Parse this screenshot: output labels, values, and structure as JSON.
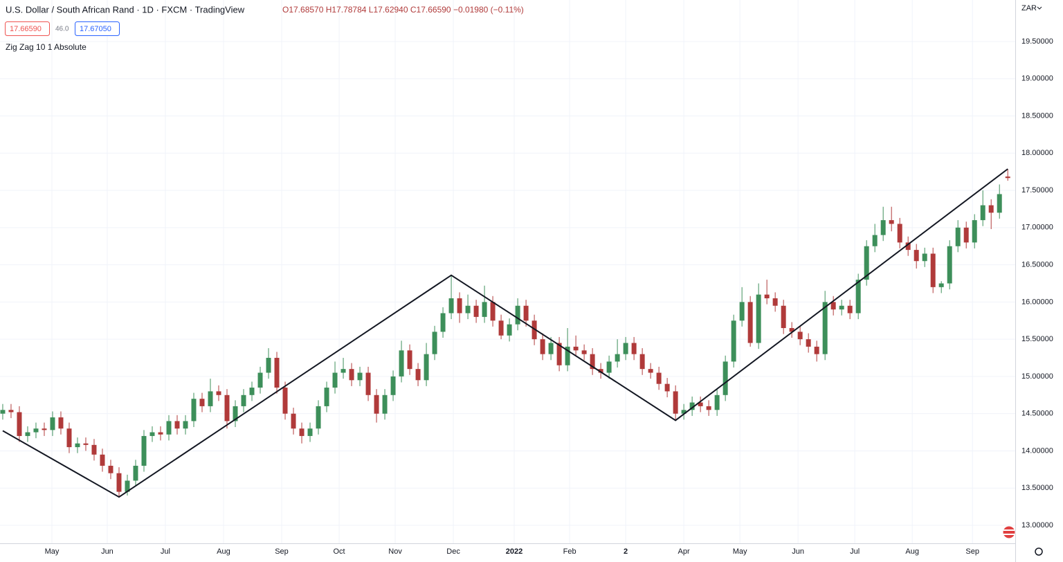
{
  "chart_data": {
    "type": "candlestick",
    "title": "U.S. Dollar / South African Rand · 1D · FXCM · TradingView",
    "ohlc_text": [
      "O17.68570",
      "H17.78784",
      "L17.62940",
      "C17.66590",
      "−0.01980 (−0.11%)"
    ],
    "bid": "17.66590",
    "spread": "46.0",
    "ask": "17.67050",
    "indicator": "Zig Zag 10 1 Absolute",
    "currency": "ZAR",
    "up_color": "#3d8f5a",
    "down_color": "#b03a3a",
    "candles": [
      [
        14.5,
        14.63,
        14.42,
        14.55
      ],
      [
        14.55,
        14.63,
        14.44,
        14.52
      ],
      [
        14.52,
        14.6,
        14.12,
        14.2
      ],
      [
        14.2,
        14.33,
        14.12,
        14.25
      ],
      [
        14.25,
        14.38,
        14.17,
        14.3
      ],
      [
        14.3,
        14.38,
        14.2,
        14.28
      ],
      [
        14.28,
        14.53,
        14.2,
        14.45
      ],
      [
        14.45,
        14.53,
        14.22,
        14.3
      ],
      [
        14.3,
        14.38,
        13.97,
        14.05
      ],
      [
        14.05,
        14.18,
        13.97,
        14.1
      ],
      [
        14.1,
        14.18,
        14.0,
        14.08
      ],
      [
        14.08,
        14.16,
        13.87,
        13.95
      ],
      [
        13.95,
        14.03,
        13.72,
        13.8
      ],
      [
        13.8,
        13.88,
        13.62,
        13.7
      ],
      [
        13.7,
        13.78,
        13.38,
        13.45
      ],
      [
        13.45,
        13.68,
        13.4,
        13.6
      ],
      [
        13.6,
        13.88,
        13.52,
        13.8
      ],
      [
        13.8,
        14.28,
        13.72,
        14.2
      ],
      [
        14.2,
        14.33,
        14.12,
        14.25
      ],
      [
        14.25,
        14.33,
        14.14,
        14.22
      ],
      [
        14.22,
        14.48,
        14.14,
        14.4
      ],
      [
        14.4,
        14.48,
        14.22,
        14.3
      ],
      [
        14.3,
        14.48,
        14.22,
        14.4
      ],
      [
        14.4,
        14.78,
        14.32,
        14.7
      ],
      [
        14.7,
        14.78,
        14.52,
        14.6
      ],
      [
        14.6,
        14.97,
        14.52,
        14.8
      ],
      [
        14.8,
        14.88,
        14.67,
        14.75
      ],
      [
        14.75,
        14.83,
        14.3,
        14.4
      ],
      [
        14.4,
        14.68,
        14.32,
        14.6
      ],
      [
        14.6,
        14.83,
        14.52,
        14.75
      ],
      [
        14.75,
        14.93,
        14.67,
        14.85
      ],
      [
        14.85,
        15.13,
        14.77,
        15.05
      ],
      [
        15.05,
        15.38,
        14.97,
        15.25
      ],
      [
        15.25,
        15.33,
        14.77,
        14.85
      ],
      [
        14.85,
        14.93,
        14.42,
        14.5
      ],
      [
        14.5,
        14.58,
        14.22,
        14.3
      ],
      [
        14.3,
        14.38,
        14.1,
        14.2
      ],
      [
        14.2,
        14.38,
        14.12,
        14.3
      ],
      [
        14.3,
        14.68,
        14.22,
        14.6
      ],
      [
        14.6,
        14.93,
        14.52,
        14.85
      ],
      [
        14.85,
        15.2,
        14.77,
        15.05
      ],
      [
        15.05,
        15.25,
        14.97,
        15.1
      ],
      [
        15.1,
        15.18,
        14.87,
        14.95
      ],
      [
        14.95,
        15.13,
        14.87,
        15.05
      ],
      [
        15.05,
        15.13,
        14.67,
        14.75
      ],
      [
        14.75,
        14.83,
        14.38,
        14.5
      ],
      [
        14.5,
        14.83,
        14.42,
        14.75
      ],
      [
        14.75,
        15.08,
        14.67,
        15.0
      ],
      [
        15.0,
        15.48,
        14.92,
        15.35
      ],
      [
        15.35,
        15.43,
        15.02,
        15.1
      ],
      [
        15.1,
        15.18,
        14.87,
        14.95
      ],
      [
        14.95,
        15.45,
        14.87,
        15.3
      ],
      [
        15.3,
        15.68,
        15.22,
        15.6
      ],
      [
        15.6,
        15.93,
        15.52,
        15.85
      ],
      [
        15.85,
        16.36,
        15.77,
        16.05
      ],
      [
        16.05,
        16.13,
        15.72,
        15.85
      ],
      [
        15.85,
        16.1,
        15.77,
        15.95
      ],
      [
        15.95,
        16.03,
        15.72,
        15.8
      ],
      [
        15.8,
        16.22,
        15.72,
        16.0
      ],
      [
        16.0,
        16.08,
        15.67,
        15.75
      ],
      [
        15.75,
        15.83,
        15.5,
        15.55
      ],
      [
        15.55,
        15.78,
        15.47,
        15.7
      ],
      [
        15.7,
        16.05,
        15.62,
        15.95
      ],
      [
        15.95,
        16.03,
        15.67,
        15.75
      ],
      [
        15.75,
        15.83,
        15.42,
        15.5
      ],
      [
        15.5,
        15.58,
        15.22,
        15.3
      ],
      [
        15.3,
        15.53,
        15.22,
        15.45
      ],
      [
        15.45,
        15.53,
        15.07,
        15.15
      ],
      [
        15.15,
        15.65,
        15.07,
        15.4
      ],
      [
        15.4,
        15.55,
        15.27,
        15.35
      ],
      [
        15.35,
        15.43,
        15.22,
        15.3
      ],
      [
        15.3,
        15.38,
        15.02,
        15.1
      ],
      [
        15.1,
        15.18,
        14.97,
        15.05
      ],
      [
        15.05,
        15.28,
        14.97,
        15.2
      ],
      [
        15.2,
        15.5,
        15.12,
        15.3
      ],
      [
        15.3,
        15.53,
        15.22,
        15.45
      ],
      [
        15.45,
        15.53,
        15.22,
        15.3
      ],
      [
        15.3,
        15.38,
        15.02,
        15.1
      ],
      [
        15.1,
        15.18,
        14.97,
        15.05
      ],
      [
        15.05,
        15.13,
        14.82,
        14.9
      ],
      [
        14.9,
        14.98,
        14.72,
        14.8
      ],
      [
        14.8,
        14.88,
        14.41,
        14.5
      ],
      [
        14.5,
        14.63,
        14.42,
        14.55
      ],
      [
        14.55,
        14.73,
        14.47,
        14.65
      ],
      [
        14.65,
        14.73,
        14.52,
        14.6
      ],
      [
        14.6,
        14.68,
        14.47,
        14.55
      ],
      [
        14.55,
        14.83,
        14.47,
        14.75
      ],
      [
        14.75,
        15.28,
        14.67,
        15.2
      ],
      [
        15.2,
        15.83,
        15.12,
        15.75
      ],
      [
        15.75,
        16.2,
        15.67,
        16.0
      ],
      [
        16.0,
        16.08,
        15.4,
        15.45
      ],
      [
        15.45,
        16.25,
        15.37,
        16.1
      ],
      [
        16.1,
        16.3,
        15.97,
        16.05
      ],
      [
        16.05,
        16.13,
        15.87,
        15.95
      ],
      [
        15.95,
        16.03,
        15.57,
        15.65
      ],
      [
        15.65,
        15.73,
        15.52,
        15.6
      ],
      [
        15.6,
        15.68,
        15.42,
        15.5
      ],
      [
        15.5,
        15.58,
        15.32,
        15.4
      ],
      [
        15.4,
        15.48,
        15.2,
        15.3
      ],
      [
        15.3,
        16.15,
        15.22,
        16.0
      ],
      [
        16.0,
        16.08,
        15.82,
        15.9
      ],
      [
        15.9,
        16.03,
        15.82,
        15.95
      ],
      [
        15.95,
        16.03,
        15.77,
        15.85
      ],
      [
        15.85,
        16.38,
        15.77,
        16.3
      ],
      [
        16.3,
        16.83,
        16.22,
        16.75
      ],
      [
        16.75,
        17.05,
        16.67,
        16.9
      ],
      [
        16.9,
        17.28,
        16.82,
        17.1
      ],
      [
        17.1,
        17.28,
        16.95,
        17.05
      ],
      [
        17.05,
        17.13,
        16.72,
        16.8
      ],
      [
        16.8,
        16.88,
        16.62,
        16.7
      ],
      [
        16.7,
        16.78,
        16.45,
        16.55
      ],
      [
        16.55,
        16.73,
        16.47,
        16.65
      ],
      [
        16.65,
        16.73,
        16.12,
        16.2
      ],
      [
        16.2,
        16.28,
        16.12,
        16.25
      ],
      [
        16.25,
        16.83,
        16.17,
        16.75
      ],
      [
        16.75,
        17.1,
        16.67,
        17.0
      ],
      [
        17.0,
        17.08,
        16.72,
        16.8
      ],
      [
        16.8,
        17.18,
        16.72,
        17.1
      ],
      [
        17.1,
        17.5,
        17.02,
        17.3
      ],
      [
        17.3,
        17.38,
        16.98,
        17.2
      ],
      [
        17.2,
        17.58,
        17.12,
        17.45
      ],
      [
        17.6857,
        17.78784,
        17.6294,
        17.6659
      ]
    ],
    "zigzag": {
      "color": "#131722",
      "x": [
        0,
        14,
        54,
        81,
        121
      ],
      "values": [
        14.27,
        13.38,
        16.36,
        14.41,
        17.78784
      ]
    },
    "xlim": [
      -0.33,
      121.9
    ],
    "xticks": [
      {
        "value": 5.92,
        "label": "May"
      },
      {
        "value": 12.58,
        "label": "Jun"
      },
      {
        "value": 19.58,
        "label": "Jul"
      },
      {
        "value": 26.58,
        "label": "Aug"
      },
      {
        "value": 33.58,
        "label": "Sep"
      },
      {
        "value": 40.5,
        "label": "Oct"
      },
      {
        "value": 47.25,
        "label": "Nov"
      },
      {
        "value": 54.25,
        "label": "Dec"
      },
      {
        "value": 61.58,
        "label": "2022"
      },
      {
        "value": 68.25,
        "label": "Feb"
      },
      {
        "value": 75.0,
        "label": "2"
      },
      {
        "value": 82.0,
        "label": "Apr"
      },
      {
        "value": 88.75,
        "label": "May"
      },
      {
        "value": 95.75,
        "label": "Jun"
      },
      {
        "value": 102.58,
        "label": "Jul"
      },
      {
        "value": 109.5,
        "label": "Aug"
      },
      {
        "value": 116.75,
        "label": "Sep"
      }
    ],
    "ylim": [
      12.758,
      20.058
    ],
    "yticks": [
      {
        "value": 13.0,
        "label": "13.00000"
      },
      {
        "value": 13.5,
        "label": "13.50000"
      },
      {
        "value": 14.0,
        "label": "14.00000"
      },
      {
        "value": 14.5,
        "label": "14.50000"
      },
      {
        "value": 15.0,
        "label": "15.00000"
      },
      {
        "value": 15.5,
        "label": "15.50000"
      },
      {
        "value": 16.0,
        "label": "16.00000"
      },
      {
        "value": 16.5,
        "label": "16.50000"
      },
      {
        "value": 17.0,
        "label": "17.00000"
      },
      {
        "value": 17.5,
        "label": "17.50000"
      },
      {
        "value": 18.0,
        "label": "18.00000"
      },
      {
        "value": 18.5,
        "label": "18.50000"
      },
      {
        "value": 19.0,
        "label": "19.00000"
      },
      {
        "value": 19.5,
        "label": "19.50000"
      }
    ],
    "grid": true
  }
}
